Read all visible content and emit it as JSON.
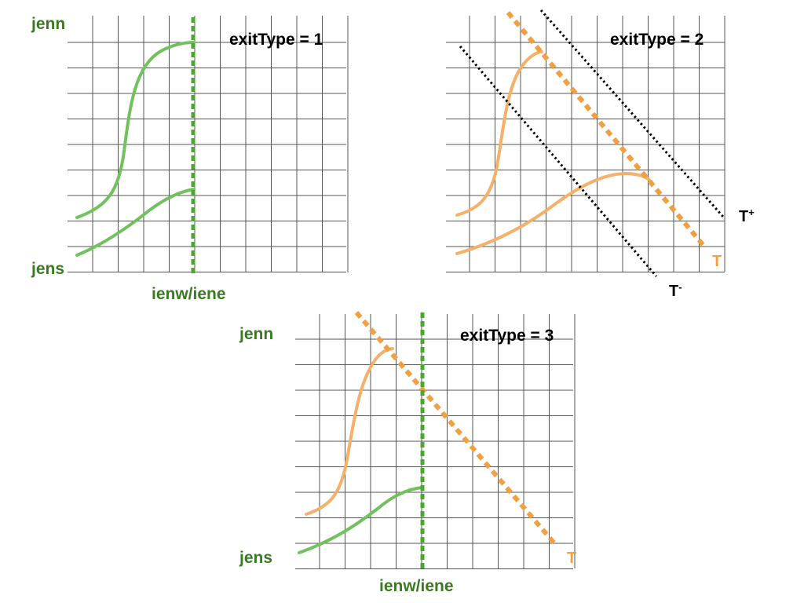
{
  "colors": {
    "grid": "#555555",
    "green_curve": "#72c15e",
    "green_dotted": "#4aa832",
    "green_text": "#3b7a22",
    "orange_curve": "#f5b06a",
    "orange_dotted": "#f0a040",
    "black_dotted": "#000000"
  },
  "panels": [
    {
      "id": "panel-1",
      "title": "exitType = 1",
      "y_top_label": "jenn",
      "y_bottom_label": "jens",
      "x_label": "ienw/iene",
      "curve_color": "green"
    },
    {
      "id": "panel-2",
      "title": "exitType = 2",
      "curve_color": "orange",
      "t_label": "T",
      "t_plus": {
        "base": "T",
        "sup": "+"
      },
      "t_minus": {
        "base": "T",
        "sup": "-"
      }
    },
    {
      "id": "panel-3",
      "title": "exitType = 3",
      "y_top_label": "jenn",
      "y_bottom_label": "jens",
      "x_label": "ienw/iene",
      "t_label": "T",
      "curve_colors": [
        "orange",
        "green"
      ]
    }
  ]
}
